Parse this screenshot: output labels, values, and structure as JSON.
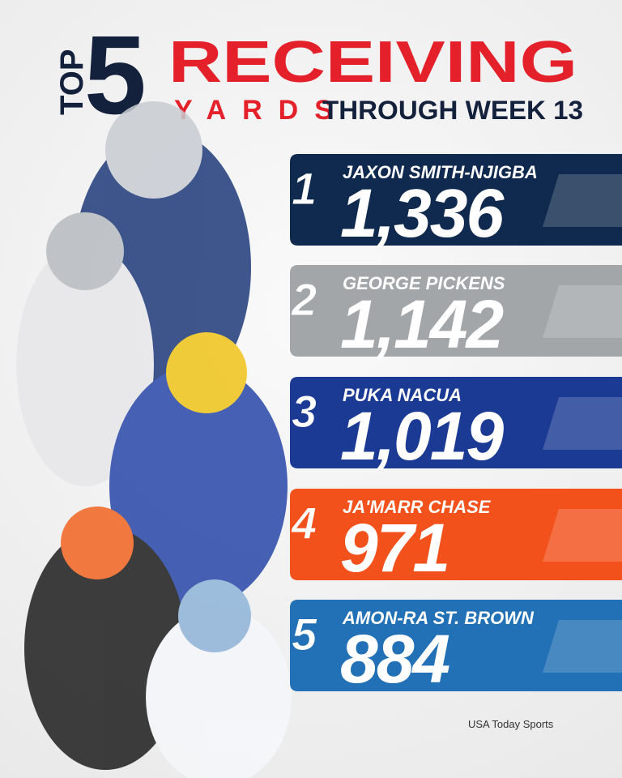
{
  "header": {
    "top": "TOP",
    "five": "5",
    "receiving": "RECEIVING",
    "yards": "YARDS",
    "through": "THROUGH WEEK 13"
  },
  "entries": [
    {
      "rank": "1",
      "name": "JAXON SMITH-NJIGBA",
      "yards": "1,336",
      "color": "#0f2a4e"
    },
    {
      "rank": "2",
      "name": "GEORGE PICKENS",
      "yards": "1,142",
      "color": "#a3a6a9"
    },
    {
      "rank": "3",
      "name": "PUKA NACUA",
      "yards": "1,019",
      "color": "#1b3a94"
    },
    {
      "rank": "4",
      "name": "JA'MARR CHASE",
      "yards": "971",
      "color": "#f2511b"
    },
    {
      "rank": "5",
      "name": "AMON-RA ST. BROWN",
      "yards": "884",
      "color": "#2270b5"
    }
  ],
  "credit": "USA Today Sports"
}
